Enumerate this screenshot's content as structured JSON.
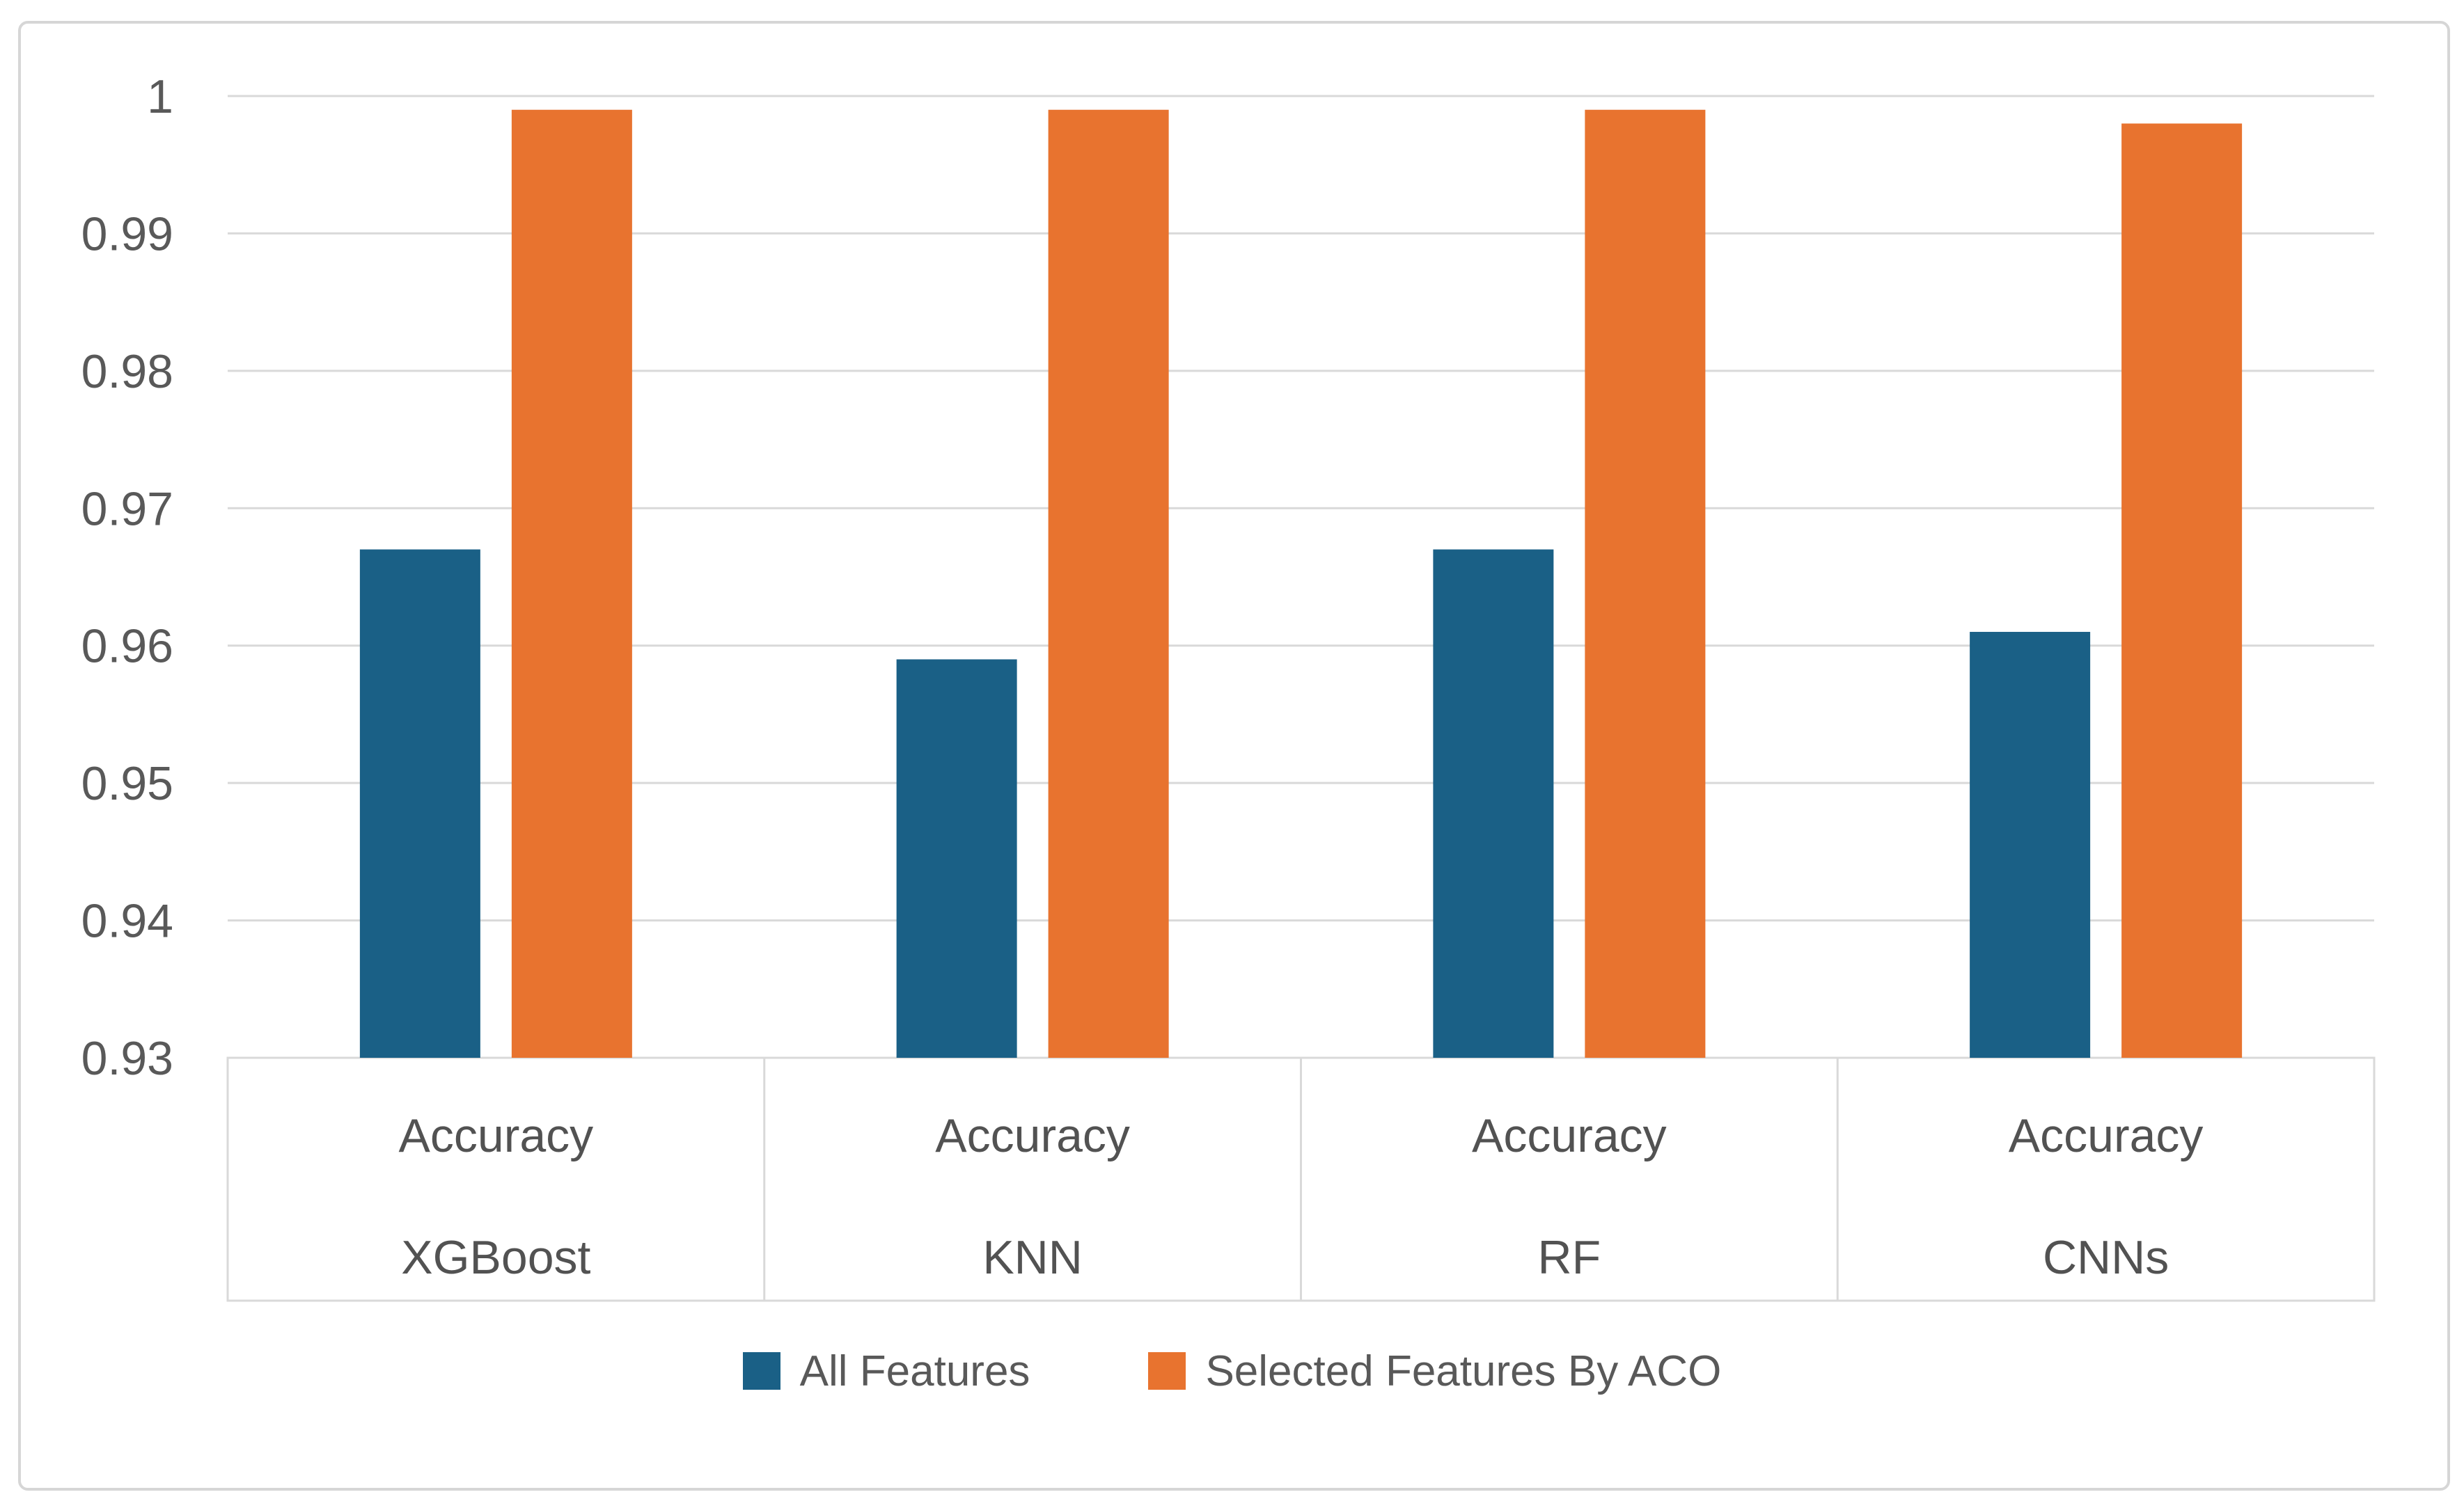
{
  "chart_data": {
    "type": "bar",
    "title": "",
    "group_top_label": "Accuracy",
    "categories": [
      "XGBoost",
      "KNN",
      "RF",
      "CNNs"
    ],
    "series": [
      {
        "name": "All Features",
        "color": "#1a6086",
        "values": [
          0.967,
          0.959,
          0.967,
          0.961
        ]
      },
      {
        "name": "Selected Features By ACO",
        "color": "#e8732f",
        "values": [
          0.999,
          0.999,
          0.999,
          0.998
        ]
      }
    ],
    "y_axis": {
      "min": 0.93,
      "max": 1.0,
      "tick_step": 0.01,
      "ticks": [
        {
          "value": 0.93,
          "label": "0.93"
        },
        {
          "value": 0.94,
          "label": "0.94"
        },
        {
          "value": 0.95,
          "label": "0.95"
        },
        {
          "value": 0.96,
          "label": "0.96"
        },
        {
          "value": 0.97,
          "label": "0.97"
        },
        {
          "value": 0.98,
          "label": "0.98"
        },
        {
          "value": 0.99,
          "label": "0.99"
        },
        {
          "value": 1.0,
          "label": "1"
        }
      ]
    },
    "grid": true,
    "legend_position": "bottom",
    "colors": {
      "gridline": "#d9d9d9",
      "axis_box_border": "#d9d9d9",
      "tick_text": "#595959",
      "category_text": "#525252",
      "frame_border": "#d6d6d6"
    }
  }
}
